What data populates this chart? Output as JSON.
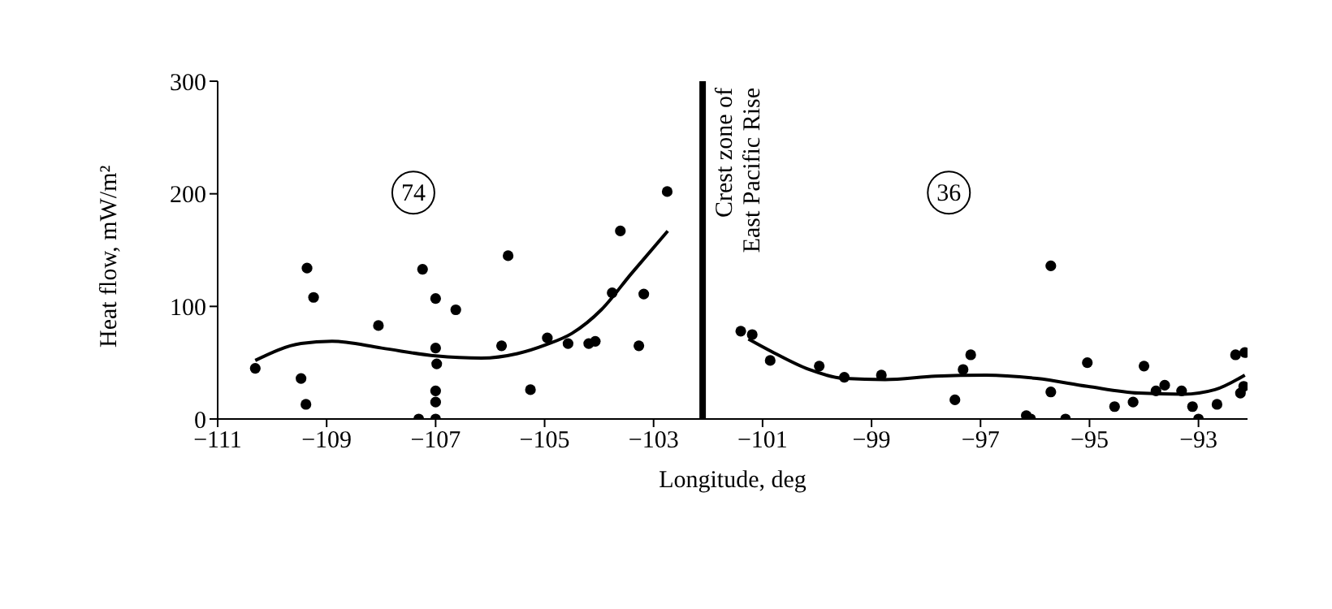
{
  "chart_data": {
    "type": "scatter",
    "xlabel": "Longitude, deg",
    "ylabel": "Heat flow, mW/m²",
    "xlim": [
      -111,
      -92.1
    ],
    "xticks": [
      {
        "value": -111,
        "label": "−111"
      },
      {
        "value": -109,
        "label": "−109"
      },
      {
        "value": -107,
        "label": "−107"
      },
      {
        "value": -105,
        "label": "−105"
      },
      {
        "value": -103,
        "label": "−103"
      },
      {
        "value": -101,
        "label": "−101"
      },
      {
        "value": -99,
        "label": "−99"
      },
      {
        "value": -97,
        "label": "−97"
      },
      {
        "value": -95,
        "label": "−95"
      },
      {
        "value": -93,
        "label": "−93"
      }
    ],
    "ylim": [
      0,
      300
    ],
    "yticks": [
      0,
      100,
      200,
      300
    ],
    "grid": false,
    "legend": false,
    "marker": "circle",
    "annotations": [
      "74",
      "36"
    ],
    "ref_lines": [
      {
        "axis": "x",
        "value": -102.1,
        "label": "Crest zone of East Pacific Rise",
        "color": "#000000"
      }
    ],
    "series": [
      {
        "color": "#000000",
        "x": [
          -110.31,
          -109.47,
          -109.38,
          -109.36,
          -109.24,
          -108.05,
          -107.31,
          -107.24,
          -107.0,
          -107.0,
          -107.0,
          -106.98,
          -107.0,
          -107.0,
          -106.63,
          -105.79,
          -105.67,
          -105.26,
          -104.95,
          -104.57,
          -104.19,
          -104.07,
          -103.76,
          -103.61,
          -103.27,
          -103.18,
          -102.75,
          -101.4,
          -101.19,
          -100.86,
          -99.96,
          -99.5,
          -98.82,
          -97.47,
          -97.32,
          -97.18,
          -96.16,
          -96.08,
          -95.71,
          -95.71,
          -95.44,
          -95.04,
          -94.54,
          -94.2,
          -94.0,
          -93.78,
          -93.62,
          -93.31,
          -93.11,
          -93.0,
          -92.66,
          -92.32,
          -92.15,
          -92.23,
          -92.17
        ],
        "values": [
          45,
          36,
          13,
          134,
          108,
          83,
          0,
          133,
          0,
          107,
          63,
          49,
          25,
          15,
          97,
          65,
          145,
          26,
          72,
          67,
          67,
          69,
          112,
          167,
          65,
          111,
          202,
          78,
          75,
          52,
          47,
          37,
          39,
          17,
          44,
          57,
          3,
          0,
          136,
          24,
          0,
          50,
          11,
          15,
          47,
          25,
          30,
          25,
          11,
          0,
          13,
          57,
          59,
          23,
          29
        ]
      },
      {
        "type": "line",
        "color": "#000000",
        "marker": "none",
        "x": [
          -110.31,
          -109.47,
          -108.9,
          -107.99,
          -107.0,
          -106.16,
          -105.5,
          -104.97,
          -104.5,
          -103.96,
          -103.41,
          -102.74
        ],
        "values": [
          52,
          67,
          69,
          63,
          56,
          54,
          58,
          66,
          76,
          97,
          129,
          167
        ]
      },
      {
        "type": "line",
        "color": "#000000",
        "marker": "none",
        "x": [
          -101.26,
          -100.84,
          -100.15,
          -99.5,
          -98.75,
          -97.83,
          -96.9,
          -95.97,
          -95.04,
          -94.1,
          -93.28,
          -92.7,
          -92.15
        ],
        "values": [
          71,
          60,
          44,
          36,
          35,
          38,
          39,
          36,
          29,
          23,
          22,
          26,
          39
        ]
      }
    ]
  }
}
